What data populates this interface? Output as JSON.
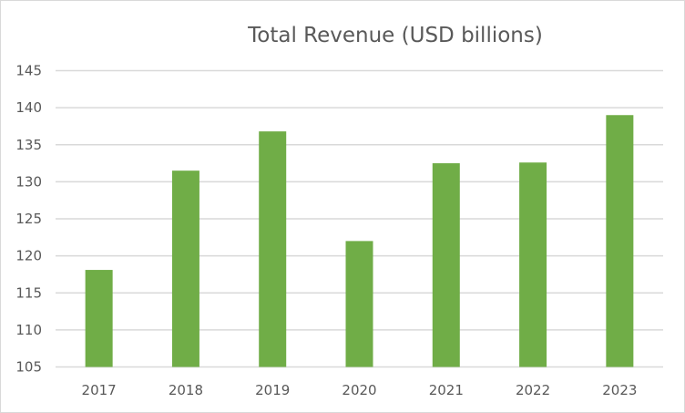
{
  "chart_data": {
    "type": "bar",
    "title": "Total Revenue (USD billions)",
    "xlabel": "",
    "ylabel": "",
    "categories": [
      "2017",
      "2018",
      "2019",
      "2020",
      "2021",
      "2022",
      "2023"
    ],
    "values": [
      118.1,
      131.5,
      136.8,
      122.0,
      132.5,
      132.6,
      139.0
    ],
    "ylim": [
      105,
      145
    ],
    "yticks": [
      "105",
      "110",
      "115",
      "120",
      "125",
      "130",
      "135",
      "140",
      "145"
    ],
    "grid": true,
    "legend": "none",
    "colors": {
      "bar": "#70ad47",
      "grid": "#d9d9d9",
      "text": "#595959"
    }
  }
}
